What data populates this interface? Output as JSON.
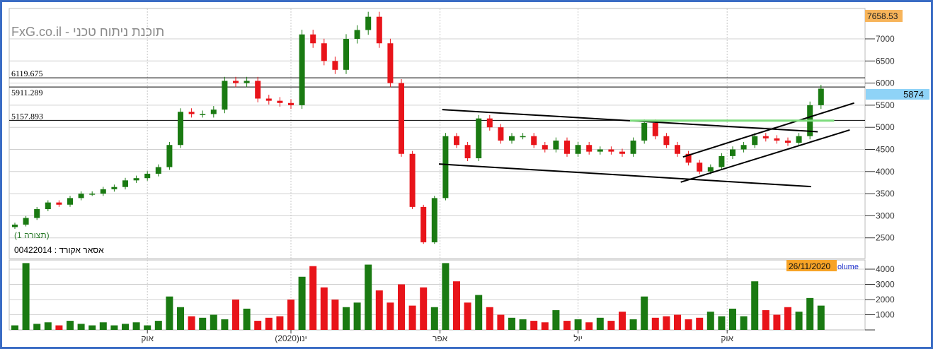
{
  "watermark": "FxG.co.il - תוכנת ניתוח טכני",
  "instrument_label": "00422014 : אסאר אקורד",
  "view_label": "(תצורה 1)",
  "max_label": "7658.53",
  "last_price_label": "5874",
  "date_label": "26/11/2020",
  "volume_label": "olume",
  "level_labels": [
    "6119.675",
    "5911.289",
    "5157.893"
  ],
  "colors": {
    "up": "#1a7a12",
    "down": "#e8141a",
    "grid": "#d0d0d0",
    "support_line": "#7ddc7d",
    "max_badge": "#f7b45a",
    "last_badge": "#8fd3f7",
    "frame": "#3a6cc4"
  },
  "chart_data": [
    {
      "type": "candlestick",
      "title": "",
      "ylim": [
        2200,
        7700
      ],
      "yticks": [
        2500,
        3000,
        3500,
        4000,
        4500,
        5000,
        5500,
        6000,
        6500,
        7000
      ],
      "xticks": [
        {
          "label": "אוק",
          "bar": 12
        },
        {
          "label": "ינו(2020)",
          "bar": 25
        },
        {
          "label": "אפר",
          "bar": 38.5
        },
        {
          "label": "יול",
          "bar": 51
        },
        {
          "label": "אוק",
          "bar": 64.5
        }
      ],
      "grid": true,
      "closes": [
        2800,
        2950,
        3150,
        3300,
        3250,
        3400,
        3500,
        3500,
        3600,
        3650,
        3800,
        3850,
        3950,
        4100,
        4600,
        5350,
        5300,
        5300,
        5400,
        6050,
        6000,
        6050,
        5650,
        5600,
        5550,
        5500,
        7100,
        6900,
        6500,
        6300,
        7000,
        7200,
        7500,
        6900,
        6000,
        4400,
        3200,
        2400,
        3400,
        4800,
        4600,
        4300,
        5200,
        5000,
        4700,
        4800,
        4800,
        4600,
        4500,
        4700,
        4400,
        4600,
        4450,
        4500,
        4450,
        4400,
        4700,
        5100,
        4800,
        4600,
        4400,
        4200,
        4000,
        4100,
        4350,
        4500,
        4600,
        4800,
        4750,
        4700,
        4650,
        4800,
        5500,
        5874
      ],
      "horizontal_levels": [
        6119.675,
        5911.289,
        5157.893
      ],
      "trendlines": [
        {
          "from": [
            38.7,
            5400
          ],
          "to": [
            72.7,
            4900
          ],
          "color": "#000000"
        },
        {
          "from": [
            38.4,
            4170
          ],
          "to": [
            72.1,
            3660
          ],
          "color": "#000000"
        },
        {
          "from": [
            60.5,
            4330
          ],
          "to": [
            76,
            5550
          ],
          "color": "#000000"
        },
        {
          "from": [
            60.3,
            3760
          ],
          "to": [
            75.6,
            4940
          ],
          "color": "#000000"
        },
        {
          "from": [
            55.7,
            5150
          ],
          "to": [
            74.2,
            5150
          ],
          "color": "#7ddc7d"
        }
      ]
    },
    {
      "type": "bar",
      "title": "",
      "ylim": [
        0,
        4600
      ],
      "yticks": [
        1000,
        2000,
        3000,
        4000
      ],
      "values": [
        300,
        4400,
        400,
        500,
        300,
        600,
        400,
        300,
        500,
        300,
        400,
        500,
        300,
        600,
        2200,
        1500,
        900,
        800,
        1000,
        700,
        2000,
        1400,
        600,
        800,
        900,
        2000,
        3500,
        4200,
        2800,
        2000,
        1500,
        1800,
        4300,
        2600,
        1800,
        3000,
        1600,
        2800,
        1500,
        4400,
        3200,
        1800,
        2300,
        1500,
        1000,
        800,
        700,
        600,
        500,
        1300,
        600,
        700,
        500,
        800,
        600,
        1200,
        700,
        2200,
        800,
        900,
        1000,
        700,
        800,
        1200,
        900,
        1400,
        900,
        3200,
        1300,
        1000,
        1500,
        1200,
        2100,
        1600
      ]
    }
  ]
}
